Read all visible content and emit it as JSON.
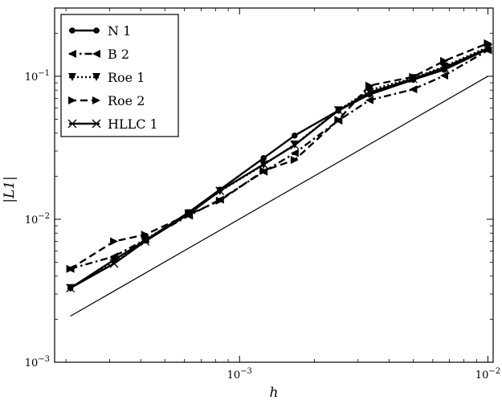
{
  "chart_data": {
    "type": "line",
    "xscale": "log",
    "yscale": "log",
    "xlabel": "h",
    "ylabel": "|L1|",
    "xlim": [
      0.00018,
      0.0105
    ],
    "ylim": [
      0.001,
      0.3
    ],
    "x_ticks": [
      {
        "value": 0.001,
        "base": "10",
        "exp": "−3"
      },
      {
        "value": 0.01,
        "base": "10",
        "exp": "−2"
      }
    ],
    "y_ticks": [
      {
        "value": 0.001,
        "base": "10",
        "exp": "−3"
      },
      {
        "value": 0.01,
        "base": "10",
        "exp": "−2"
      },
      {
        "value": 0.1,
        "base": "10",
        "exp": "−1"
      }
    ],
    "legend_position": "top-left",
    "grid": false,
    "x": [
      0.0002083,
      0.0003125,
      0.0004167,
      0.000625,
      0.0008333,
      0.00125,
      0.0016667,
      0.0025,
      0.0033333,
      0.005,
      0.0066667,
      0.01
    ],
    "series": [
      {
        "name": "N 1",
        "marker": "circle",
        "dash": "solid",
        "values": [
          0.0033,
          0.0052,
          0.0071,
          0.0112,
          0.0161,
          0.0268,
          0.0385,
          0.0575,
          0.0745,
          0.0945,
          0.111,
          0.155
        ]
      },
      {
        "name": "B 2",
        "marker": "triangle-left",
        "dash": "dashdot",
        "values": [
          0.0045,
          0.0055,
          0.0072,
          0.0106,
          0.0137,
          0.0215,
          0.029,
          0.049,
          0.068,
          0.081,
          0.101,
          0.152
        ]
      },
      {
        "name": "Roe 1",
        "marker": "triangle-down",
        "dash": "dotted",
        "values": [
          0.0033,
          0.0051,
          0.0072,
          0.011,
          0.0157,
          0.024,
          0.0333,
          0.0578,
          0.08,
          0.097,
          0.117,
          0.16
        ]
      },
      {
        "name": "Roe 2",
        "marker": "triangle-right",
        "dash": "dashed",
        "values": [
          0.0045,
          0.007,
          0.0078,
          0.0108,
          0.0135,
          0.0218,
          0.026,
          0.0495,
          0.086,
          0.099,
          0.128,
          0.17
        ]
      },
      {
        "name": "HLLC 1",
        "marker": "x",
        "dash": "solid",
        "values": [
          0.0033,
          0.0049,
          0.007,
          0.0109,
          0.0158,
          0.0242,
          0.033,
          0.0577,
          0.077,
          0.096,
          0.115,
          0.157
        ]
      }
    ],
    "reference_line": {
      "x": [
        0.0002083,
        0.01
      ],
      "values": [
        0.0021,
        0.1
      ]
    }
  }
}
